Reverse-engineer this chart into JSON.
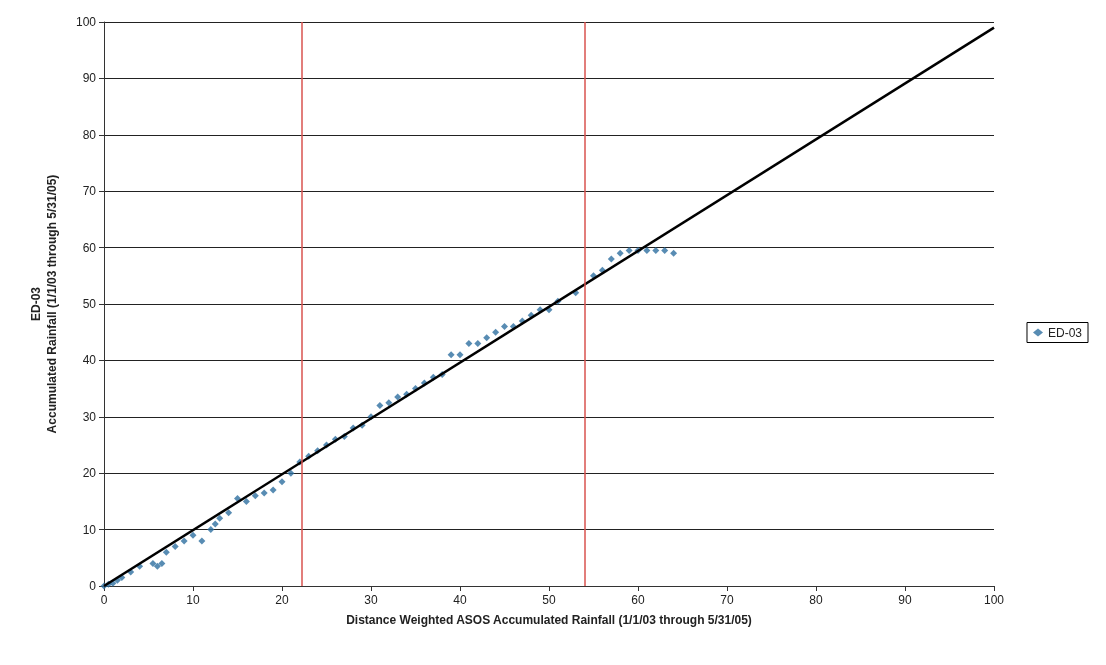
{
  "chart_data": {
    "type": "scatter",
    "xlabel": "Distance Weighted ASOS Accumulated Rainfall (1/1/03 through 5/31/05)",
    "ylabel": "ED-03\nAccumulated Rainfall (1/1/03 through 5/31/05)",
    "xlim": [
      0,
      100
    ],
    "ylim": [
      0,
      100
    ],
    "xticks": [
      0,
      10,
      20,
      30,
      40,
      50,
      60,
      70,
      80,
      90,
      100
    ],
    "yticks": [
      0,
      10,
      20,
      30,
      40,
      50,
      60,
      70,
      80,
      90,
      100
    ],
    "grid": "y",
    "legend": "right",
    "marker": "diamond",
    "series": [
      {
        "name": "ED-03",
        "color": "#2e6fa0",
        "x": [
          0,
          0.5,
          1,
          1.5,
          2,
          3,
          4,
          5.5,
          6,
          6.5,
          7,
          8,
          9,
          10,
          11,
          12,
          12.5,
          13,
          14,
          15,
          16,
          17,
          18,
          19,
          20,
          21,
          22,
          23,
          24,
          25,
          26,
          27,
          28,
          29,
          30,
          31,
          32,
          33,
          34,
          35,
          36,
          37,
          38,
          39,
          40,
          41,
          42,
          43,
          44,
          45,
          46,
          47,
          48,
          49,
          50,
          51,
          53,
          55,
          56,
          57,
          58,
          59,
          60,
          61,
          62,
          63,
          64
        ],
        "values": [
          0,
          0.3,
          0.5,
          1,
          1.5,
          2.5,
          3.5,
          4,
          3.5,
          4,
          6,
          7,
          8,
          9,
          8,
          10,
          11,
          12,
          13,
          15.5,
          15,
          16,
          16.5,
          17,
          18.5,
          20,
          22,
          23,
          24,
          25,
          26,
          26.5,
          28,
          28.5,
          30,
          32,
          32.5,
          33.5,
          34,
          35,
          36,
          37,
          37.5,
          41,
          41,
          43,
          43,
          44,
          45,
          46,
          46,
          47,
          48,
          49,
          49,
          50.5,
          52,
          55,
          56,
          58,
          59,
          59.5,
          59.5,
          59.5,
          59.5,
          59.5,
          59
        ]
      },
      {
        "type": "line",
        "color": "#000000",
        "marker": "none",
        "x": [
          0,
          100
        ],
        "values": [
          0,
          99
        ]
      }
    ],
    "ref_lines": [
      {
        "axis": "x",
        "value": 22.2,
        "color": "#d9534f"
      },
      {
        "axis": "x",
        "value": 54,
        "color": "#d9534f"
      }
    ]
  }
}
